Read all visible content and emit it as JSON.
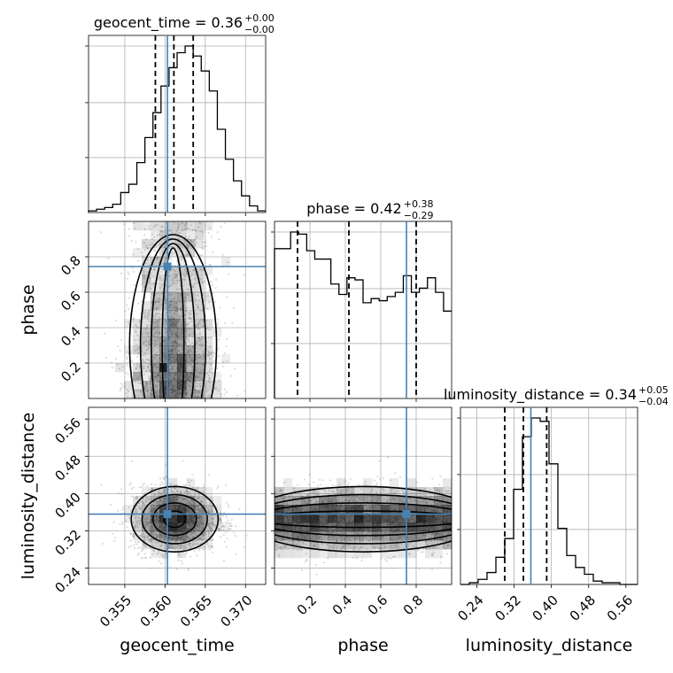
{
  "chart_data": {
    "type": "corner",
    "parameters": [
      "geocent_time",
      "phase",
      "luminosity_distance"
    ],
    "axis_labels": {
      "geocent_time": "geocent_time",
      "phase": "phase",
      "luminosity_distance": "luminosity_distance"
    },
    "ranges": {
      "geocent_time": [
        0.3505,
        0.3725
      ],
      "phase": [
        0.0,
        1.0
      ],
      "luminosity_distance": [
        0.205,
        0.585
      ]
    },
    "ticks": {
      "geocent_time": [
        0.355,
        0.36,
        0.365,
        0.37
      ],
      "phase": [
        0.2,
        0.4,
        0.6,
        0.8
      ],
      "luminosity_distance": [
        0.24,
        0.32,
        0.4,
        0.48,
        0.56
      ]
    },
    "tick_labels": {
      "geocent_time": [
        "0.355",
        "0.360",
        "0.365",
        "0.370"
      ],
      "phase": [
        "0.2",
        "0.4",
        "0.6",
        "0.8"
      ],
      "luminosity_distance": [
        "0.24",
        "0.32",
        "0.40",
        "0.48",
        "0.56"
      ]
    },
    "titles": {
      "geocent_time": {
        "text": "geocent_time = 0.36",
        "plus": "+0.00",
        "minus": "−0.00"
      },
      "phase": {
        "text": "phase = 0.42",
        "plus": "+0.38",
        "minus": "−0.29"
      },
      "luminosity_distance": {
        "text": "luminosity_distance = 0.34",
        "plus": "+0.05",
        "minus": "−0.04"
      }
    },
    "quantiles": {
      "geocent_time": [
        0.3588,
        0.3611,
        0.3635
      ],
      "phase": [
        0.13,
        0.42,
        0.8
      ],
      "luminosity_distance": [
        0.3,
        0.34,
        0.39
      ]
    },
    "truths": {
      "geocent_time": 0.3603,
      "phase": 0.745,
      "luminosity_distance": 0.356
    },
    "histograms": {
      "geocent_time": {
        "edges_range": [
          0.3505,
          0.3725
        ],
        "counts": [
          1,
          2,
          3,
          5,
          12,
          17,
          30,
          45,
          60,
          76,
          87,
          96,
          100,
          94,
          85,
          73,
          50,
          32,
          19,
          10,
          4,
          1
        ]
      },
      "phase": {
        "edges_range": [
          0.0,
          1.0
        ],
        "counts": [
          72,
          72,
          80,
          79,
          71,
          67,
          67,
          55,
          50,
          58,
          57,
          46,
          48,
          47,
          49,
          51,
          59,
          51,
          53,
          58,
          51,
          42
        ]
      },
      "luminosity_distance": {
        "edges_range": [
          0.205,
          0.585
        ],
        "counts": [
          0,
          1,
          3,
          7,
          16,
          27,
          56,
          87,
          98,
          96,
          71,
          33,
          17,
          10,
          6,
          2,
          1,
          1,
          0,
          0
        ]
      }
    },
    "joint": {
      "phase|geocent_time": {
        "mean": [
          0.361,
          0.45
        ],
        "sd": [
          0.0027,
          0.28
        ]
      },
      "luminosity_distance|geocent_time": {
        "mean": [
          0.3612,
          0.345
        ],
        "sd": [
          0.0027,
          0.035
        ]
      },
      "luminosity_distance|phase": {
        "mean": [
          0.5,
          0.345
        ],
        "sd": [
          0.3,
          0.035
        ]
      }
    },
    "colors": {
      "truth": "#4682b4",
      "histogram": "#000000",
      "grid": "#b0b0b0",
      "density": "#000000",
      "scatter": "#999999"
    }
  }
}
